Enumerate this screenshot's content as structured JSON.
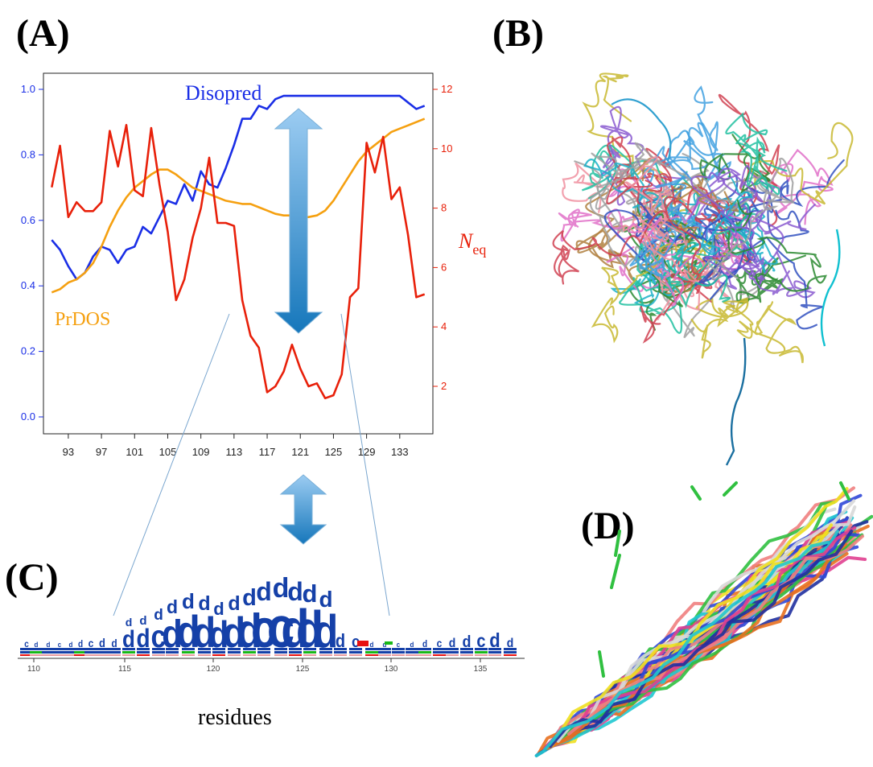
{
  "panels": {
    "a": "(A)",
    "b": "(B)",
    "c": "(C)",
    "d": "(D)"
  },
  "chart_data": {
    "type": "line",
    "x": [
      91,
      92,
      93,
      94,
      95,
      96,
      97,
      98,
      99,
      100,
      101,
      102,
      103,
      104,
      105,
      106,
      107,
      108,
      109,
      110,
      111,
      112,
      113,
      114,
      115,
      116,
      117,
      118,
      119,
      120,
      121,
      122,
      123,
      124,
      125,
      126,
      127,
      128,
      129,
      130,
      131,
      132,
      133,
      134,
      135,
      136
    ],
    "x_ticks": [
      "93",
      "97",
      "101",
      "105",
      "109",
      "113",
      "117",
      "121",
      "125",
      "129",
      "133"
    ],
    "xlim": [
      90,
      137
    ],
    "y_left": {
      "ticks": [
        "0.0",
        "0.2",
        "0.4",
        "0.6",
        "0.8",
        "1.0"
      ],
      "ylim": [
        0,
        1.0
      ],
      "color": "#1a2ee6"
    },
    "y_right": {
      "ticks": [
        "2",
        "4",
        "6",
        "8",
        "10",
        "12"
      ],
      "ylim": [
        1,
        12
      ],
      "color": "#e8200a",
      "label_main": "N",
      "label_sub": "eq"
    },
    "series": [
      {
        "name": "Disopred",
        "axis": "left",
        "color": "#1a2ee6",
        "values": [
          0.54,
          0.51,
          0.46,
          0.42,
          0.44,
          0.49,
          0.52,
          0.51,
          0.47,
          0.51,
          0.52,
          0.58,
          0.56,
          0.61,
          0.66,
          0.65,
          0.71,
          0.66,
          0.75,
          0.71,
          0.7,
          0.76,
          0.83,
          0.91,
          0.91,
          0.95,
          0.94,
          0.97,
          0.98,
          0.98,
          0.98,
          0.98,
          0.98,
          0.98,
          0.98,
          0.98,
          0.98,
          0.98,
          0.98,
          0.98,
          0.98,
          0.98,
          0.98,
          0.96,
          0.94,
          0.95
        ]
      },
      {
        "name": "PrDOS",
        "axis": "left",
        "color": "#f5a010",
        "values": [
          0.38,
          0.39,
          0.41,
          0.42,
          0.44,
          0.47,
          0.52,
          0.58,
          0.63,
          0.67,
          0.7,
          0.72,
          0.74,
          0.755,
          0.755,
          0.74,
          0.72,
          0.7,
          0.69,
          0.68,
          0.67,
          0.66,
          0.655,
          0.65,
          0.65,
          0.64,
          0.63,
          0.62,
          0.615,
          0.615,
          0.61,
          0.61,
          0.615,
          0.63,
          0.66,
          0.7,
          0.74,
          0.78,
          0.81,
          0.83,
          0.85,
          0.87,
          0.88,
          0.89,
          0.9,
          0.91
        ]
      },
      {
        "name": "Neq",
        "axis": "right",
        "color": "#e8200a",
        "values": [
          8.7,
          10.1,
          7.7,
          8.2,
          7.9,
          7.9,
          8.2,
          10.6,
          9.4,
          10.8,
          8.6,
          8.4,
          10.7,
          8.8,
          7.2,
          4.9,
          5.6,
          7.0,
          8.0,
          9.7,
          7.5,
          7.5,
          7.4,
          4.9,
          3.7,
          3.3,
          1.8,
          2.0,
          2.5,
          3.4,
          2.6,
          2.0,
          2.1,
          1.6,
          1.7,
          2.4,
          5.0,
          5.3,
          10.2,
          9.2,
          10.4,
          8.3,
          8.7,
          7.1,
          5.0,
          5.1
        ]
      }
    ],
    "annotations": [
      "Disopred",
      "PrDOS"
    ]
  },
  "logo": {
    "x_ticks": [
      "110",
      "115",
      "120",
      "125",
      "130",
      "135"
    ],
    "xlabel": "residues"
  },
  "colors": {
    "logo_blue": "#1540a8",
    "logo_green": "#18b818",
    "logo_red": "#e81010",
    "arrow_top": "#8cc0ee",
    "arrow_bottom": "#1a7cc0"
  }
}
